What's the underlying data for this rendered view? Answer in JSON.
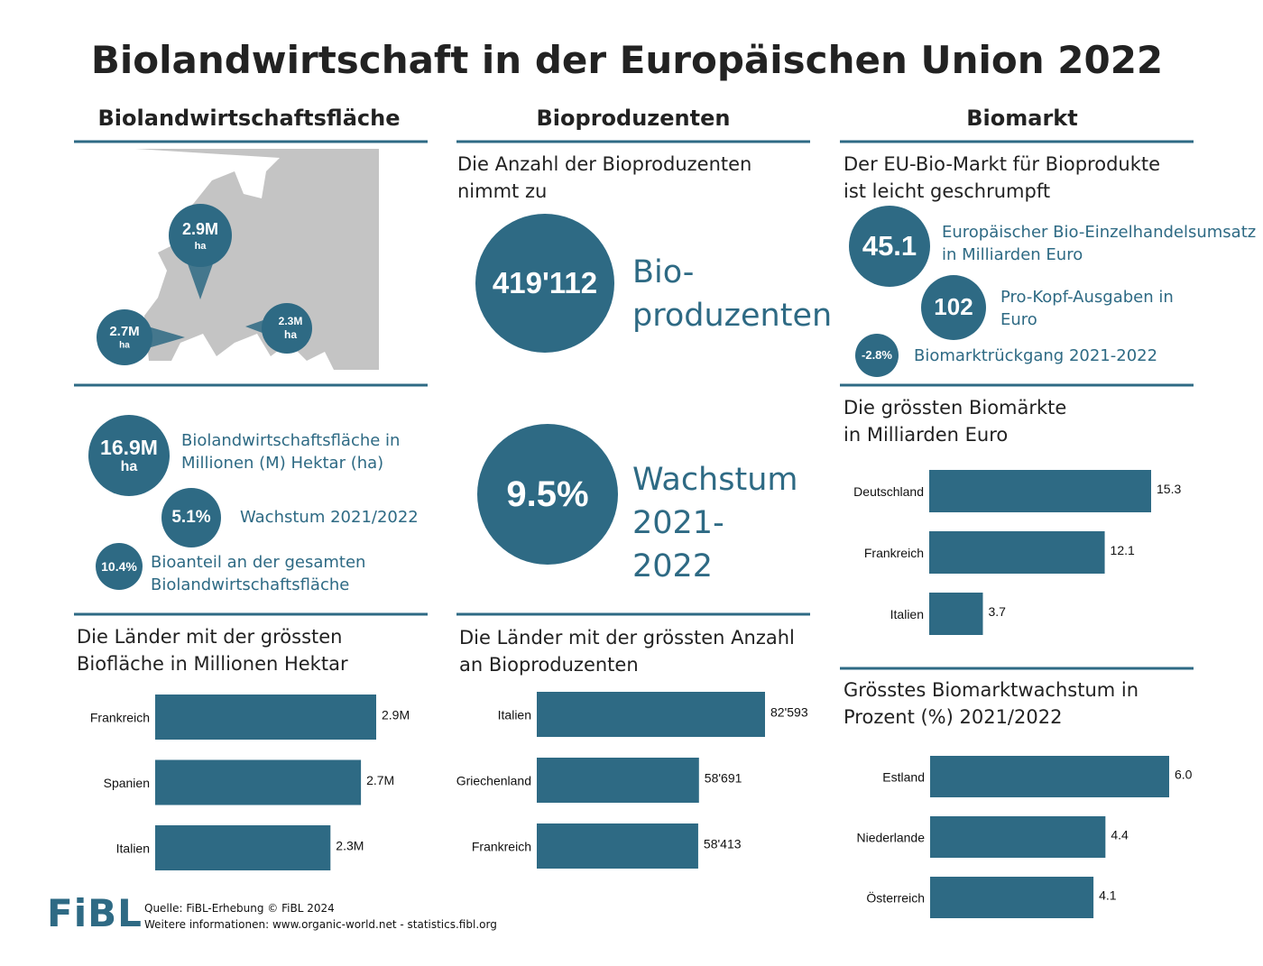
{
  "title": "Biolandwirtschaft in der Europäischen Union 2022",
  "columns": [
    "Biolandwirtschaftsfläche",
    "Bioproduzenten",
    "Biomarkt"
  ],
  "map": {
    "markers": [
      {
        "value": "2.9M",
        "unit": "ha"
      },
      {
        "value": "2.7M",
        "unit": "ha"
      },
      {
        "value": "2.3M",
        "unit": "ha"
      }
    ]
  },
  "area_stats": [
    {
      "value": "16.9M",
      "unit": "ha",
      "label": "Biolandwirtschaftsfläche in Millionen (M) Hektar (ha)"
    },
    {
      "value": "5.1%",
      "label": "Wachstum 2021/2022"
    },
    {
      "value": "10.4%",
      "label": "Bioanteil an der gesamten Biolandwirtschaftsfläche"
    }
  ],
  "producers": {
    "heading": "Die Anzahl der Bioproduzenten nimmt zu",
    "stats": [
      {
        "value": "419'112",
        "label": "Bio-produzenten"
      },
      {
        "value": "9.5%",
        "label": "Wachstum 2021-2022"
      }
    ]
  },
  "market": {
    "heading": "Der EU-Bio-Markt für Bioprodukte ist leicht geschrumpft",
    "stats": [
      {
        "value": "45.1",
        "label": "Europäischer Bio-Einzelhandelsumsatz in Milliarden Euro"
      },
      {
        "value": "102",
        "label": "Pro-Kopf-Ausgaben in Euro"
      },
      {
        "value": "-2.8%",
        "label": "Biomarktrückgang 2021-2022"
      }
    ]
  },
  "chart_data": [
    {
      "type": "bar",
      "orientation": "horizontal",
      "title": "Die Länder mit der grössten Biofläche in Millionen Hektar",
      "categories": [
        "Frankreich",
        "Spanien",
        "Italien"
      ],
      "values": [
        2.9,
        2.7,
        2.3
      ],
      "value_labels": [
        "2.9M",
        "2.7M",
        "2.3M"
      ],
      "color": "#2e6a84"
    },
    {
      "type": "bar",
      "orientation": "horizontal",
      "title": "Die Länder mit der grössten Anzahl an Bioproduzenten",
      "categories": [
        "Italien",
        "Griechenland",
        "Frankreich"
      ],
      "values": [
        82593,
        58691,
        58413
      ],
      "value_labels": [
        "82'593",
        "58'691",
        "58'413"
      ],
      "color": "#2e6a84"
    },
    {
      "type": "bar",
      "orientation": "horizontal",
      "title": "Die grössten Biomärkte in Milliarden Euro",
      "categories": [
        "Deutschland",
        "Frankreich",
        "Italien"
      ],
      "values": [
        15.3,
        12.1,
        3.7
      ],
      "color": "#2e6a84"
    },
    {
      "type": "bar",
      "orientation": "horizontal",
      "title": "Grösstes Biomarktwachstum in Prozent (%) 2021/2022",
      "categories": [
        "Estland",
        "Niederlande",
        "Österreich"
      ],
      "values": [
        6.0,
        4.4,
        4.1
      ],
      "value_labels": [
        "6.0",
        "4.4",
        "4.1"
      ],
      "color": "#2e6a84"
    }
  ],
  "footer": {
    "logo": "FiBL",
    "source": "Quelle: FiBL-Erhebung © FiBL 2024",
    "more": "Weitere informationen: www.organic-world.net - statistics.fibl.org"
  }
}
